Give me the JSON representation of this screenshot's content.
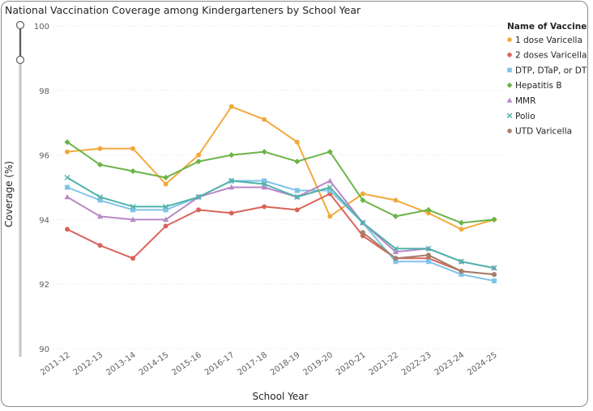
{
  "title": "National Vaccination Coverage among Kindergarteners by School Year",
  "chart_data": {
    "type": "line",
    "title": "National Vaccination Coverage among Kindergarteners by School Year",
    "xlabel": "School Year",
    "ylabel": "Coverage (%)",
    "ylim": [
      90,
      100
    ],
    "yticks": [
      "90",
      "92",
      "94",
      "96",
      "98",
      "100"
    ],
    "grid": true,
    "legend_title": "Name of Vaccine",
    "legend_position": "right",
    "categories": [
      "2011-12",
      "2012-13",
      "2013-14",
      "2014-15",
      "2015-16",
      "2016-17",
      "2017-18",
      "2018-19",
      "2019-20",
      "2020-21",
      "2021-22",
      "2022-23",
      "2023-24",
      "2024-25"
    ],
    "series": [
      {
        "name": "1 dose Varicella",
        "color": "#F2A93B",
        "marker": "circle",
        "values": [
          96.1,
          96.2,
          96.2,
          95.1,
          96.0,
          97.5,
          97.1,
          96.4,
          94.1,
          94.8,
          94.6,
          94.2,
          93.7,
          94.0
        ]
      },
      {
        "name": "2 doses Varicella",
        "color": "#D9645A",
        "marker": "circle",
        "values": [
          93.7,
          93.2,
          92.8,
          93.8,
          94.3,
          94.2,
          94.4,
          94.3,
          94.8,
          93.5,
          92.8,
          92.8,
          92.4,
          92.3
        ]
      },
      {
        "name": "DTP, DTaP, or DT",
        "color": "#7FC4E8",
        "marker": "square",
        "values": [
          95.0,
          94.6,
          94.3,
          94.3,
          94.7,
          95.2,
          95.2,
          94.9,
          94.9,
          93.9,
          92.7,
          92.7,
          92.3,
          92.1
        ]
      },
      {
        "name": "Hepatitis B",
        "color": "#6BB447",
        "marker": "diamond",
        "values": [
          96.4,
          95.7,
          95.5,
          95.3,
          95.8,
          96.0,
          96.1,
          95.8,
          96.1,
          94.6,
          94.1,
          94.3,
          93.9,
          94.0
        ]
      },
      {
        "name": "MMR",
        "color": "#B888C7",
        "marker": "triangle",
        "values": [
          94.7,
          94.1,
          94.0,
          94.0,
          94.7,
          95.0,
          95.0,
          94.7,
          95.2,
          93.9,
          93.0,
          93.1,
          92.7,
          92.5
        ]
      },
      {
        "name": "Polio",
        "color": "#4FB3A9",
        "marker": "x",
        "values": [
          95.3,
          94.7,
          94.4,
          94.4,
          94.7,
          95.2,
          95.1,
          94.7,
          95.0,
          93.9,
          93.1,
          93.1,
          92.7,
          92.5
        ]
      },
      {
        "name": "UTD Varicella",
        "color": "#A47F6C",
        "marker": "circle",
        "values": [
          null,
          null,
          null,
          null,
          null,
          null,
          null,
          null,
          null,
          93.6,
          92.8,
          92.9,
          92.4,
          92.3
        ]
      }
    ]
  }
}
